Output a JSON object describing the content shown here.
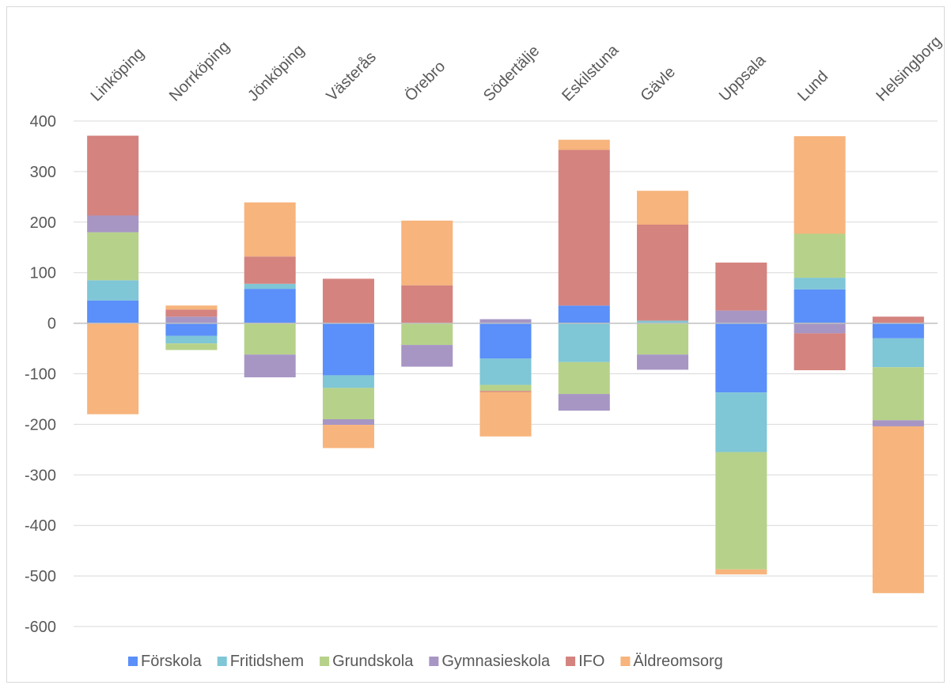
{
  "chart_data": {
    "type": "bar",
    "stacked": true,
    "title": "",
    "xlabel": "",
    "ylabel": "",
    "ylim": [
      -600,
      400
    ],
    "yticks": [
      400,
      300,
      200,
      100,
      0,
      -100,
      -200,
      -300,
      -400,
      -500,
      -600
    ],
    "categories": [
      "Linköping",
      "Norrköping",
      "Jönköping",
      "Västerås",
      "Örebro",
      "Södertälje",
      "Eskilstuna",
      "Gävle",
      "Uppsala",
      "Lund",
      "Helsingborg"
    ],
    "series": [
      {
        "name": "Förskola",
        "color": "#5b8ff9",
        "values": [
          45,
          -25,
          68,
          -103,
          0,
          -70,
          35,
          0,
          -137,
          67,
          -30
        ]
      },
      {
        "name": "Fritidshem",
        "color": "#7fc6d6",
        "values": [
          40,
          -15,
          10,
          -25,
          0,
          -52,
          -77,
          5,
          -118,
          23,
          -57
        ]
      },
      {
        "name": "Grundskola",
        "color": "#b6d28a",
        "values": [
          95,
          -13,
          -62,
          -62,
          -43,
          -12,
          -63,
          -62,
          -232,
          87,
          -105
        ]
      },
      {
        "name": "Gymnasieskola",
        "color": "#a796c4",
        "values": [
          33,
          13,
          -45,
          -11,
          -43,
          8,
          -33,
          -30,
          25,
          -20,
          -12
        ]
      },
      {
        "name": "IFO",
        "color": "#d4837f",
        "values": [
          158,
          14,
          54,
          88,
          75,
          -2,
          308,
          190,
          95,
          -73,
          13
        ]
      },
      {
        "name": "Äldreomsorg",
        "color": "#f7b47c",
        "values": [
          -180,
          8,
          107,
          -46,
          128,
          -88,
          20,
          67,
          -10,
          193,
          -330
        ]
      }
    ],
    "legend": "bottom",
    "grid": true
  }
}
